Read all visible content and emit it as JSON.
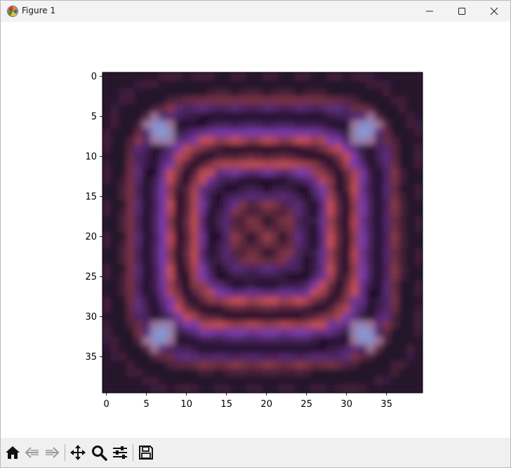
{
  "window": {
    "title": "Figure 1",
    "icon": "matplotlib-icon",
    "controls": [
      "minimize-icon",
      "maximize-icon",
      "close-icon"
    ]
  },
  "toolbar": {
    "buttons": [
      {
        "name": "home-button",
        "icon": "home-icon",
        "enabled": true
      },
      {
        "name": "back-button",
        "icon": "back-arrow-icon",
        "enabled": false
      },
      {
        "name": "forward-button",
        "icon": "forward-arrow-icon",
        "enabled": false
      },
      {
        "name": "pan-button",
        "icon": "move-icon",
        "enabled": true
      },
      {
        "name": "zoom-button",
        "icon": "magnifier-icon",
        "enabled": true
      },
      {
        "name": "configure-subplots-button",
        "icon": "sliders-icon",
        "enabled": true
      },
      {
        "name": "save-button",
        "icon": "floppy-disk-icon",
        "enabled": true
      }
    ]
  },
  "chart_data": {
    "type": "heatmap",
    "title": "",
    "xlabel": "",
    "ylabel": "",
    "colormap": "twilight_shifted",
    "grid_size": [
      40,
      40
    ],
    "xlim": [
      -0.5,
      39.5
    ],
    "ylim": [
      39.5,
      -0.5
    ],
    "x_ticks": [
      "0",
      "5",
      "10",
      "15",
      "20",
      "25",
      "30",
      "35"
    ],
    "y_ticks": [
      "0",
      "5",
      "10",
      "15",
      "20",
      "25",
      "30",
      "35"
    ],
    "grid": false,
    "colors": {
      "background": "#2d1733",
      "dark": "#1f0f26",
      "purple": "#7a3aa8",
      "red": "#c24e56",
      "blue": "#7e9de0"
    }
  }
}
